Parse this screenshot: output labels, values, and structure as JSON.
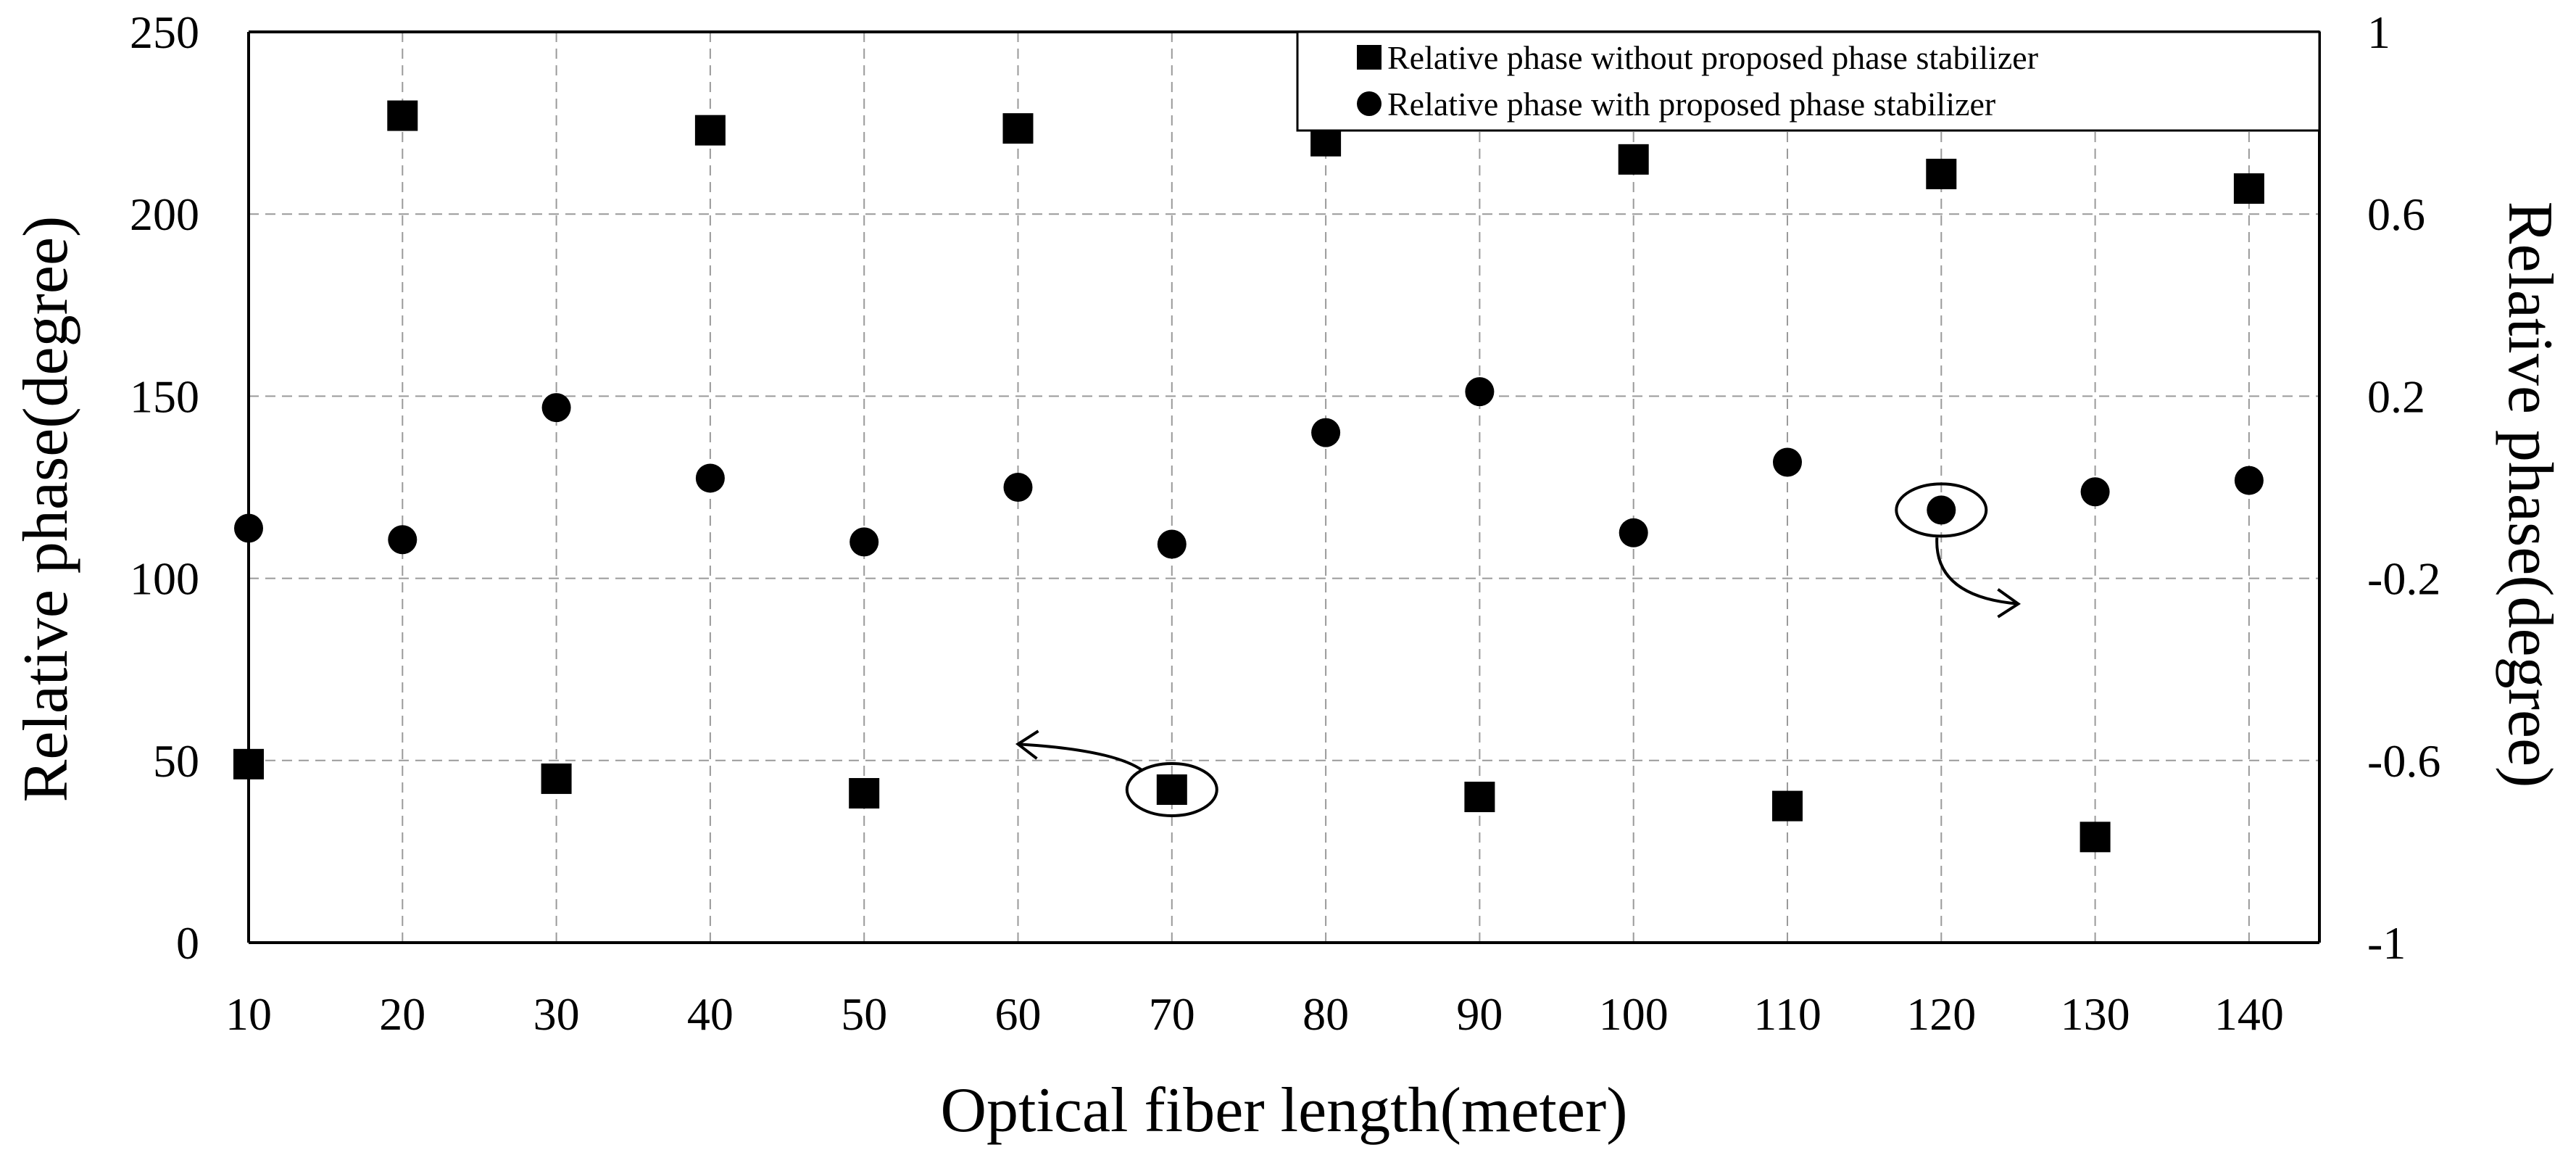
{
  "chart_data": {
    "type": "scatter",
    "title": "",
    "xlabel": "Optical fiber length(meter)",
    "ylabel_left": "Relative phase(degree)",
    "ylabel_right": "Relative phase(degree)",
    "x_ticks": [
      10,
      20,
      30,
      40,
      50,
      60,
      70,
      80,
      90,
      100,
      110,
      120,
      130,
      140
    ],
    "xlim": [
      10,
      145
    ],
    "y_left_ticks": [
      "0",
      "50",
      "100",
      "150",
      "200",
      "250"
    ],
    "y_left_lim": [
      0,
      250
    ],
    "y_right_ticks": [
      "-1",
      "-0.6",
      "-0.2",
      "0.2",
      "0.6",
      "1"
    ],
    "y_right_lim": [
      -1,
      1
    ],
    "grid": true,
    "legend_position": "top-right",
    "series": [
      {
        "name": "Relative phase without proposed phase stabilizer",
        "marker": "square",
        "axis": "left",
        "x": [
          10,
          20,
          30,
          40,
          50,
          60,
          70,
          80,
          90,
          100,
          110,
          120,
          130,
          140
        ],
        "values": [
          49,
          227,
          45,
          223,
          41,
          223.5,
          42,
          220,
          40,
          215,
          37.5,
          211,
          29,
          207
        ]
      },
      {
        "name": "Relative phase with proposed phase stabilizer",
        "marker": "circle",
        "axis": "right",
        "x": [
          10,
          20,
          30,
          40,
          50,
          60,
          70,
          80,
          90,
          100,
          110,
          120,
          130,
          140
        ],
        "values": [
          -0.09,
          -0.115,
          0.175,
          0.02,
          -0.12,
          0.0,
          -0.125,
          0.12,
          0.21,
          -0.1,
          0.055,
          -0.05,
          -0.01,
          0.015
        ]
      }
    ],
    "annotations": [
      {
        "label": "circled point at x=70 (left axis series), arrow points left",
        "target": "left-axis"
      },
      {
        "label": "circled point at x=120 (right axis series), arrow points right",
        "target": "right-axis"
      }
    ]
  }
}
